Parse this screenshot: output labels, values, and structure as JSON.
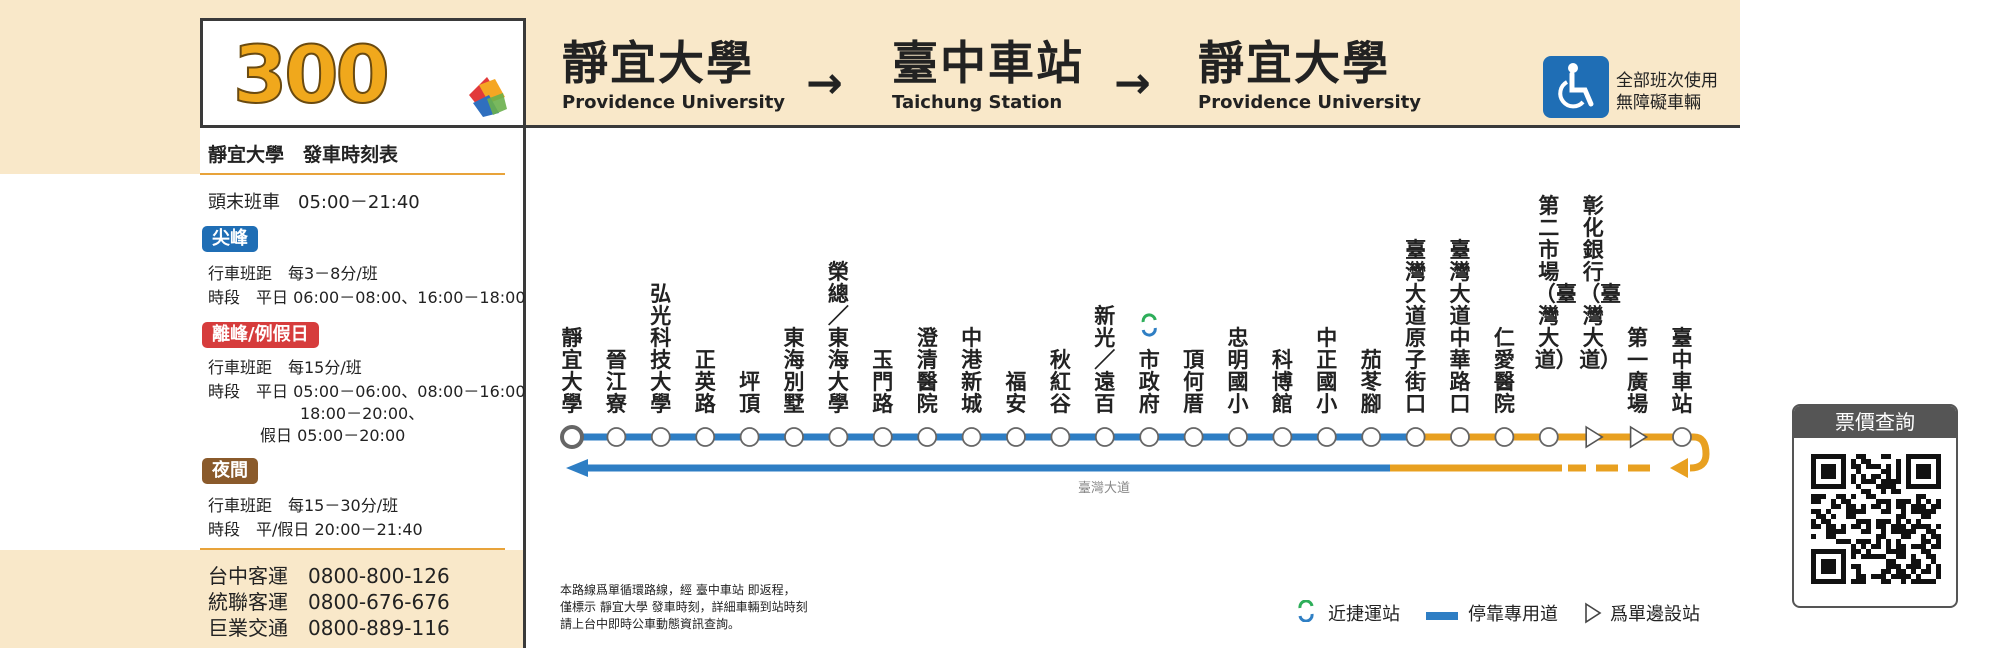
{
  "route": {
    "number": "300"
  },
  "header": {
    "from": {
      "zh": "靜宜大學",
      "en": "Providence University"
    },
    "via": {
      "zh": "臺中車站",
      "en": "Taichung Station"
    },
    "to": {
      "zh": "靜宜大學",
      "en": "Providence University"
    },
    "arrow": "→",
    "accessible_line1": "全部班次使用",
    "accessible_line2": "無障礙車輛"
  },
  "timetable": {
    "title": "靜宜大學　發車時刻表",
    "first_last": "頭末班車　05:00－21:40",
    "peak": {
      "badge": "尖峰",
      "interval": "行車班距　每3－8分/班",
      "period": "時段　平日 06:00－08:00、16:00－18:00"
    },
    "offpeak": {
      "badge": "離峰/例假日",
      "interval": "行車班距　每15分/班",
      "period1": "時段　平日 05:00－06:00、08:00－16:00",
      "period2": "18:00－20:00、",
      "period3": "假日 05:00－20:00"
    },
    "night": {
      "badge": "夜間",
      "interval": "行車班距　每15－30分/班",
      "period": "時段　平/假日 20:00－21:40"
    }
  },
  "contacts": [
    "台中客運　0800-800-126",
    "統聯客運　0800-676-676",
    "巨業交通　0800-889-116"
  ],
  "stations": [
    "靜宜大學",
    "晉江寮",
    "弘光科技大學",
    "正英路",
    "坪頂",
    "東海別墅",
    "榮總／東海大學",
    "玉門路",
    "澄清醫院",
    "中港新城",
    "福安",
    "秋紅谷",
    "新光／遠百",
    "市政府",
    "頂何厝",
    "忠明國小",
    "科博館",
    "中正國小",
    "茄苳腳",
    "臺灣大道原子街口",
    "臺灣大道中華路口",
    "仁愛醫院",
    "第二市場（臺灣大道）",
    "彰化銀行（臺灣大道）",
    "第一廣場",
    "臺中車站"
  ],
  "road_label": "臺灣大道",
  "notes": [
    "本路線爲單循環路線，經 臺中車站 即返程，",
    "僅標示 靜宜大學 發車時刻，詳細車輛到站時刻",
    "請上台中即時公車動態資訊查詢。"
  ],
  "legend": {
    "brt": "近捷運站",
    "lane": "停靠專用道",
    "oneside": "爲單邊設站"
  },
  "fare": {
    "title": "票價查詢"
  },
  "colors": {
    "blue": "#2e7ec4",
    "orange": "#e8a020",
    "peak": "#1f6eb5",
    "offpeak": "#d63c3c",
    "night": "#8a5a2b"
  }
}
